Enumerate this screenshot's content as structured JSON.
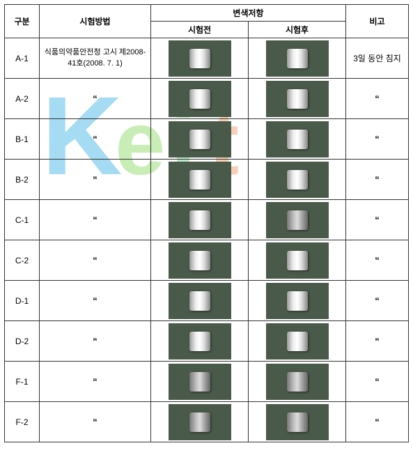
{
  "headers": {
    "gubun": "구분",
    "method": "시험방법",
    "change": "변색저항",
    "before": "시험전",
    "after": "시험후",
    "remark": "비고"
  },
  "rows": [
    {
      "gubun": "A-1",
      "method": "식품의약품안전청 고시 제2008-41호(2008. 7. 1)",
      "remark": "3일 동안 침지",
      "before_tint": "silver",
      "after_tint": "silver"
    },
    {
      "gubun": "A-2",
      "method": "“",
      "remark": "“",
      "before_tint": "silver",
      "after_tint": "silver"
    },
    {
      "gubun": "B-1",
      "method": "“",
      "remark": "“",
      "before_tint": "silver",
      "after_tint": "silver"
    },
    {
      "gubun": "B-2",
      "method": "“",
      "remark": "“",
      "before_tint": "silver",
      "after_tint": "silver"
    },
    {
      "gubun": "C-1",
      "method": "“",
      "remark": "“",
      "before_tint": "silver",
      "after_tint": "darker"
    },
    {
      "gubun": "C-2",
      "method": "“",
      "remark": "“",
      "before_tint": "silver",
      "after_tint": "silver"
    },
    {
      "gubun": "D-1",
      "method": "“",
      "remark": "“",
      "before_tint": "silver",
      "after_tint": "silver"
    },
    {
      "gubun": "D-2",
      "method": "“",
      "remark": "“",
      "before_tint": "silver",
      "after_tint": "silver"
    },
    {
      "gubun": "F-1",
      "method": "“",
      "remark": "“",
      "before_tint": "darker",
      "after_tint": "darker"
    },
    {
      "gubun": "F-2",
      "method": "“",
      "remark": "“",
      "before_tint": "darker",
      "after_tint": "darker"
    }
  ],
  "watermark_colors": {
    "k": "#0099dd",
    "e": "#66cc33",
    "i": "#44bb66",
    "t": "#ee7733"
  }
}
